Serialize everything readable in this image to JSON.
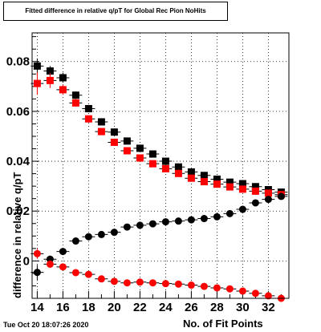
{
  "title": "Fitted difference in relative q/pT for Global Rec Pion NoHits",
  "timestamp": "Tue Oct 20 18:07:26 2020",
  "chart_data": {
    "type": "scatter",
    "xlabel": "No. of Fit Points",
    "ylabel": "difference in relative q/pT",
    "xlim": [
      13.6,
      33.6
    ],
    "ylim": [
      -0.015,
      0.0915
    ],
    "xticks": [
      14,
      16,
      18,
      20,
      22,
      24,
      26,
      28,
      30,
      32
    ],
    "yticks": [
      0,
      0.02,
      0.04,
      0.06,
      0.08
    ],
    "ytick_labels": [
      "0",
      "0.02",
      "0.04",
      "0.06",
      "0.08"
    ],
    "grid": true,
    "x": [
      14,
      15,
      16,
      17,
      18,
      19,
      20,
      21,
      22,
      23,
      24,
      25,
      26,
      27,
      28,
      29,
      30,
      31,
      32,
      33
    ],
    "series": [
      {
        "marker": "square",
        "color": "#000000",
        "values": [
          0.0782,
          0.0762,
          0.0735,
          0.0665,
          0.0611,
          0.0558,
          0.0517,
          0.0481,
          0.0452,
          0.0429,
          0.04,
          0.0377,
          0.0357,
          0.0343,
          0.0328,
          0.0316,
          0.031,
          0.0298,
          0.0286,
          0.0276
        ],
        "errors": [
          0.003,
          0.002,
          0.002,
          0.0015,
          0.0012,
          0.001,
          0.001,
          0.001,
          0.001,
          0.001,
          0.001,
          0.001,
          0.001,
          0.001,
          0.001,
          0.001,
          0.001,
          0.001,
          0.001,
          0.001
        ]
      },
      {
        "marker": "square",
        "color": "#ff0000",
        "values": [
          0.0712,
          0.0724,
          0.0687,
          0.0634,
          0.057,
          0.0519,
          0.0476,
          0.0442,
          0.0413,
          0.039,
          0.037,
          0.0351,
          0.0332,
          0.0318,
          0.0308,
          0.0297,
          0.0288,
          0.028,
          0.0272,
          0.0266
        ],
        "errors": [
          0.0045,
          0.003,
          0.002,
          0.0015,
          0.0012,
          0.001,
          0.001,
          0.001,
          0.001,
          0.001,
          0.001,
          0.001,
          0.001,
          0.001,
          0.001,
          0.001,
          0.001,
          0.001,
          0.001,
          0.001
        ]
      },
      {
        "marker": "circle",
        "color": "#000000",
        "values": [
          -0.0046,
          0.0007,
          0.0038,
          0.008,
          0.0097,
          0.0106,
          0.0115,
          0.0136,
          0.0143,
          0.0149,
          0.0157,
          0.016,
          0.0165,
          0.017,
          0.0177,
          0.019,
          0.0207,
          0.0233,
          0.0247,
          0.0259
        ],
        "errors": [
          0.003,
          0.0015,
          0.001,
          0.001,
          0.001,
          0.001,
          0.001,
          0.001,
          0.001,
          0.001,
          0.001,
          0.001,
          0.001,
          0.001,
          0.001,
          0.001,
          0.001,
          0.001,
          0.001,
          0.001
        ]
      },
      {
        "marker": "circle",
        "color": "#ff0000",
        "values": [
          0.0029,
          -0.0013,
          -0.0024,
          -0.0047,
          -0.0054,
          -0.0072,
          -0.0082,
          -0.0088,
          -0.0085,
          -0.0088,
          -0.0091,
          -0.0093,
          -0.0097,
          -0.0102,
          -0.0108,
          -0.0112,
          -0.0121,
          -0.013,
          -0.014,
          -0.015
        ],
        "errors": [
          0.002,
          0.0015,
          0.001,
          0.001,
          0.001,
          0.001,
          0.001,
          0.001,
          0.001,
          0.001,
          0.001,
          0.001,
          0.001,
          0.001,
          0.001,
          0.001,
          0.001,
          0.001,
          0.001,
          0.001
        ]
      }
    ]
  }
}
